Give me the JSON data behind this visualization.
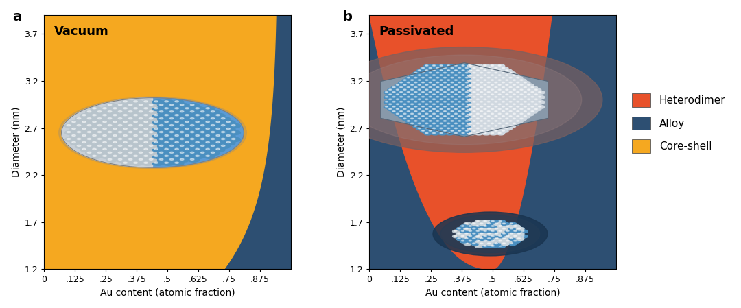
{
  "color_heterodimer": "#E8512A",
  "color_alloy": "#2D4F72",
  "color_coreshell": "#F5A820",
  "color_bg": "#ffffff",
  "xlim": [
    0.0,
    1.0
  ],
  "ylim": [
    1.2,
    3.9
  ],
  "xticks": [
    0.0,
    0.125,
    0.25,
    0.375,
    0.5,
    0.625,
    0.75,
    0.875
  ],
  "xticklabels": [
    "0",
    ".125",
    ".25",
    ".375",
    ".5",
    ".625",
    ".75",
    ".875"
  ],
  "yticks": [
    1.2,
    1.7,
    2.2,
    2.7,
    3.2,
    3.7
  ],
  "yticklabels": [
    "1.2",
    "1.7",
    "2.2",
    "2.7",
    "3.2",
    "3.7"
  ],
  "xlabel": "Au content (atomic fraction)",
  "ylabel": "Diameter (nm)",
  "title_a": "Vacuum",
  "title_b": "Passivated",
  "legend_labels": [
    "Heterodimer",
    "Alloy",
    "Core-shell"
  ],
  "legend_colors": [
    "#E8512A",
    "#2D4F72",
    "#F5A820"
  ],
  "figsize": [
    10.8,
    4.49
  ]
}
